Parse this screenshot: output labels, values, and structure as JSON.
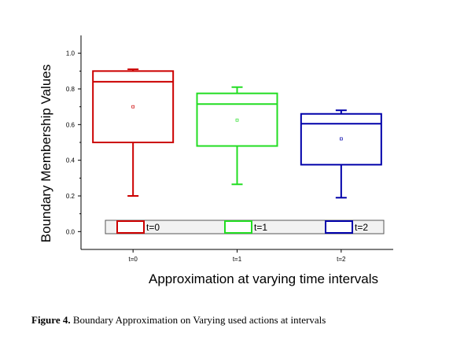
{
  "caption": {
    "label": "Figure 4.",
    "text": " Boundary Approximation on Varying used actions at intervals"
  },
  "chart_data": {
    "type": "box",
    "title": "",
    "xlabel": "Approximation at varying time intervals",
    "ylabel": "Boundary Membership Values",
    "categories": [
      "t=0",
      "t=1",
      "t=2"
    ],
    "yticks": [
      "0.0",
      "0.2",
      "0.4",
      "0.6",
      "0.8",
      "1.0"
    ],
    "ylim": [
      -0.1,
      1.1
    ],
    "grid": false,
    "legend_position": "bottom-inside",
    "series": [
      {
        "name": "t=0",
        "color": "#cc0000",
        "whisker_min": 0.2,
        "q1": 0.5,
        "median": 0.84,
        "q3": 0.9,
        "whisker_max": 0.91,
        "mean": 0.7
      },
      {
        "name": "t=1",
        "color": "#22dd22",
        "whisker_min": 0.265,
        "q1": 0.48,
        "median": 0.715,
        "q3": 0.775,
        "whisker_max": 0.81,
        "mean": 0.625
      },
      {
        "name": "t=2",
        "color": "#0000aa",
        "whisker_min": 0.19,
        "q1": 0.375,
        "median": 0.605,
        "q3": 0.66,
        "whisker_max": 0.68,
        "mean": 0.52
      }
    ]
  }
}
